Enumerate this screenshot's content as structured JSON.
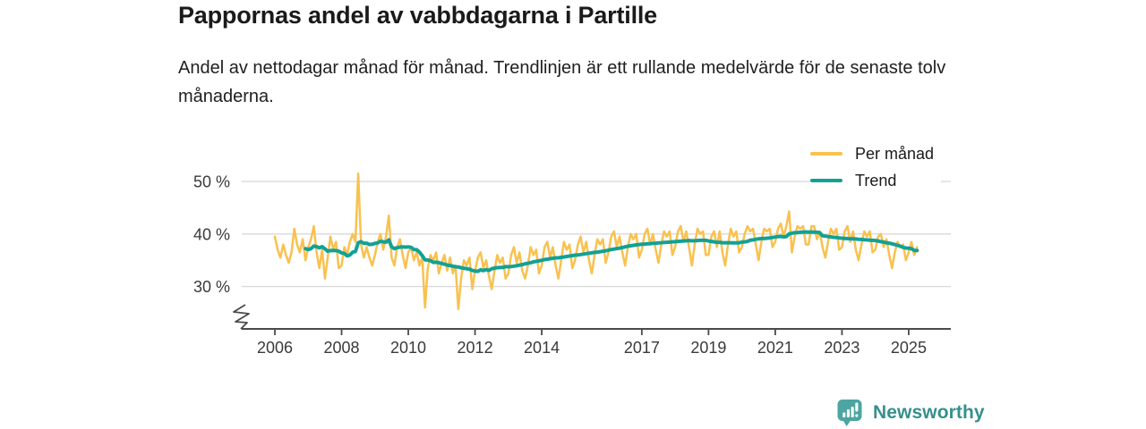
{
  "header": {
    "title": "Pappornas andel av vabbdagarna i Partille",
    "subtitle": "Andel av nettodagar månad för månad. Trendlinjen är ett rullande medelvärde för de senaste tolv månaderna."
  },
  "legend": {
    "per_manad": "Per månad",
    "trend": "Trend"
  },
  "footer": {
    "brand": "Newsworthy"
  },
  "colors": {
    "per_manad": "#F9C14F",
    "trend": "#12A195",
    "gridline": "#DADADA",
    "axis": "#4A4A4A",
    "brand_text": "#35908C",
    "brand_icon": "#4CA5A0"
  },
  "chart_data": {
    "type": "line",
    "title": "Pappornas andel av vabbdagarna i Partille",
    "unit": "%",
    "x_start": "2006-01",
    "x_end": "2025-04",
    "x_frequency": "monthly",
    "x_tick_years": [
      2006,
      2008,
      2010,
      2012,
      2014,
      2017,
      2019,
      2021,
      2023,
      2025
    ],
    "y_ticks": [
      {
        "value": 30,
        "label": "30 %"
      },
      {
        "value": 40,
        "label": "40 %"
      },
      {
        "value": 50,
        "label": "50 %"
      }
    ],
    "ylim_visible": [
      24,
      53
    ],
    "y_axis_break": true,
    "grid": "horizontal",
    "legend_position": "top-right",
    "series": [
      {
        "name": "Per månad",
        "color": "#F9C14F",
        "values": [
          39.5,
          37,
          35.5,
          38,
          36,
          34.5,
          36.5,
          41,
          38,
          36.5,
          39,
          35,
          37.5,
          39,
          41.5,
          36.5,
          33.5,
          37,
          31.5,
          35.5,
          39.5,
          37,
          38.5,
          33.5,
          34,
          37.5,
          36,
          38.5,
          40,
          38.5,
          51.5,
          38,
          35.5,
          37.5,
          35.5,
          34,
          36,
          38.5,
          40,
          37,
          39.5,
          43.5,
          35.5,
          34,
          37.5,
          39,
          36,
          33.5,
          36.5,
          37.5,
          35,
          36.5,
          34,
          35.5,
          26,
          33.5,
          36,
          35,
          36.5,
          32.5,
          34.5,
          36,
          33,
          35.5,
          32.5,
          34,
          25.7,
          31.5,
          35,
          34,
          35.5,
          29.5,
          33,
          35.5,
          36.5,
          33.5,
          35,
          32,
          29.5,
          33,
          36,
          34.5,
          35.5,
          31.5,
          32.5,
          36,
          37.5,
          34.5,
          36.5,
          33,
          31.5,
          34,
          37.5,
          36,
          37,
          32.5,
          34,
          37.5,
          38.5,
          35.5,
          37.5,
          34,
          31.5,
          35,
          38.5,
          37,
          38,
          33.5,
          35,
          38,
          39.5,
          36.5,
          38.5,
          35,
          32.5,
          36,
          39,
          38,
          39,
          34.5,
          36.5,
          39.5,
          40.5,
          37.5,
          39.5,
          36.5,
          34,
          37.5,
          40,
          39,
          40,
          35.5,
          37,
          40,
          41,
          38,
          40,
          37,
          34.5,
          38,
          40.5,
          39.5,
          40.5,
          36,
          37.5,
          40.5,
          41.5,
          38.5,
          40.5,
          37.5,
          34,
          38,
          41,
          40,
          40.5,
          36,
          36,
          39.5,
          40.5,
          37.5,
          40.5,
          36.5,
          34,
          38,
          41,
          39.5,
          40.5,
          36.5,
          37.5,
          40,
          41.5,
          40.5,
          41,
          38,
          35,
          38.5,
          41,
          40.5,
          41,
          37.5,
          38.5,
          41,
          42,
          39.5,
          41.5,
          44.3,
          36.5,
          39.5,
          41.5,
          41,
          41.5,
          38,
          38,
          41.5,
          41.5,
          39,
          40.5,
          37.5,
          35.5,
          38.5,
          41,
          40,
          41,
          37,
          37.5,
          40.5,
          41.5,
          38.5,
          40.5,
          37,
          35,
          38,
          40.5,
          39.5,
          40.5,
          36.5,
          37,
          39.5,
          40,
          37.5,
          39,
          36,
          33.5,
          36.5,
          38.5,
          37.5,
          38,
          35,
          36.5,
          38.5,
          36,
          37.5
        ]
      },
      {
        "name": "Trend",
        "color": "#12A195",
        "derived": "rullande medelvärde för de senaste tolv månaderna"
      }
    ]
  }
}
